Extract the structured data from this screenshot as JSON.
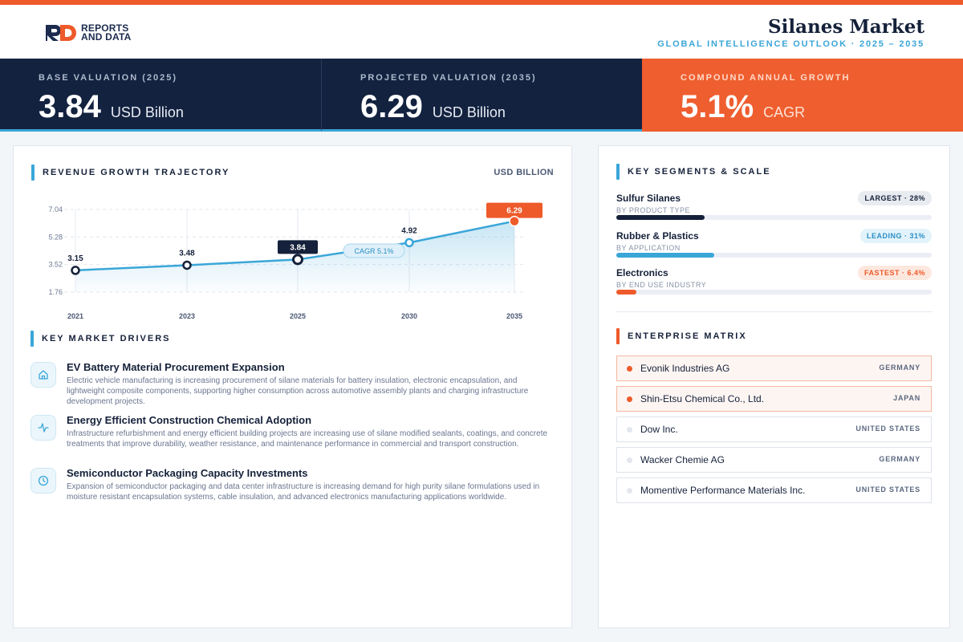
{
  "brand": {
    "line1": "REPORTS",
    "line2": "AND DATA"
  },
  "header": {
    "title": "Silanes Market",
    "subtitle": "GLOBAL INTELLIGENCE OUTLOOK  ·  2025 – 2035"
  },
  "kpis": [
    {
      "label": "BASE VALUATION (2025)",
      "value": "3.84",
      "unit": "USD Billion"
    },
    {
      "label": "PROJECTED VALUATION (2035)",
      "value": "6.29",
      "unit": "USD Billion"
    },
    {
      "label": "COMPOUND ANNUAL GROWTH",
      "value": "5.1%",
      "unit": "CAGR"
    }
  ],
  "trajectory": {
    "title": "REVENUE GROWTH TRAJECTORY",
    "unit": "USD BILLION"
  },
  "chart_data": {
    "type": "area",
    "categories": [
      "2021",
      "2023",
      "2025",
      "2030",
      "2035"
    ],
    "values": [
      3.15,
      3.48,
      3.84,
      4.92,
      6.29
    ],
    "value_labels": [
      "3.15",
      "3.48",
      "3.84",
      "4.92",
      "6.29"
    ],
    "yticks": [
      "7.04",
      "5.28",
      "3.52",
      "1.76"
    ],
    "ylim": [
      1.76,
      7.04
    ],
    "annotation": "CAGR 5.1%",
    "highlight_index": 2,
    "final_index": 4,
    "grid": true,
    "colors": {
      "line": "#3aa6d8",
      "highlight": "#15213a",
      "final": "#ee5a2a"
    }
  },
  "drivers": {
    "title": "KEY MARKET DRIVERS",
    "items": [
      {
        "icon": "home-icon",
        "title": "EV Battery Material Procurement Expansion",
        "desc": "Electric vehicle manufacturing is increasing procurement of silane materials for battery insulation, electronic encapsulation, and lightweight composite components, supporting higher consumption across automotive assembly plants and charging infrastructure development projects."
      },
      {
        "icon": "activity-icon",
        "title": "Energy Efficient Construction Chemical Adoption",
        "desc": "Infrastructure refurbishment and energy efficient building projects are increasing use of silane modified sealants, coatings, and concrete treatments that improve durability, weather resistance, and maintenance performance in commercial and transport construction."
      },
      {
        "icon": "clock-icon",
        "title": "Semiconductor Packaging Capacity Investments",
        "desc": "Expansion of semiconductor packaging and data center infrastructure is increasing demand for high purity silane formulations used in moisture resistant encapsulation systems, cable insulation, and advanced electronics manufacturing applications worldwide."
      }
    ]
  },
  "segments": {
    "title": "KEY SEGMENTS & SCALE",
    "items": [
      {
        "name": "Sulfur Silanes",
        "sub": "BY PRODUCT TYPE",
        "badge": "LARGEST · 28%",
        "share": 0.28,
        "color": "#15213a"
      },
      {
        "name": "Rubber & Plastics",
        "sub": "BY APPLICATION",
        "badge": "LEADING · 31%",
        "share": 0.31,
        "color": "#3aa6d8"
      },
      {
        "name": "Electronics",
        "sub": "BY END USE INDUSTRY",
        "badge": "FASTEST · 6.4%",
        "share": 0.064,
        "color": "#ee5a2a"
      }
    ]
  },
  "enterprise": {
    "title": "ENTERPRISE MATRIX",
    "items": [
      {
        "name": "Evonik Industries AG",
        "country": "GERMANY",
        "highlight": true
      },
      {
        "name": "Shin-Etsu Chemical Co., Ltd.",
        "country": "JAPAN",
        "highlight": true
      },
      {
        "name": "Dow Inc.",
        "country": "UNITED STATES",
        "highlight": false
      },
      {
        "name": "Wacker Chemie AG",
        "country": "GERMANY",
        "highlight": false
      },
      {
        "name": "Momentive Performance Materials Inc.",
        "country": "UNITED STATES",
        "highlight": false
      }
    ]
  }
}
